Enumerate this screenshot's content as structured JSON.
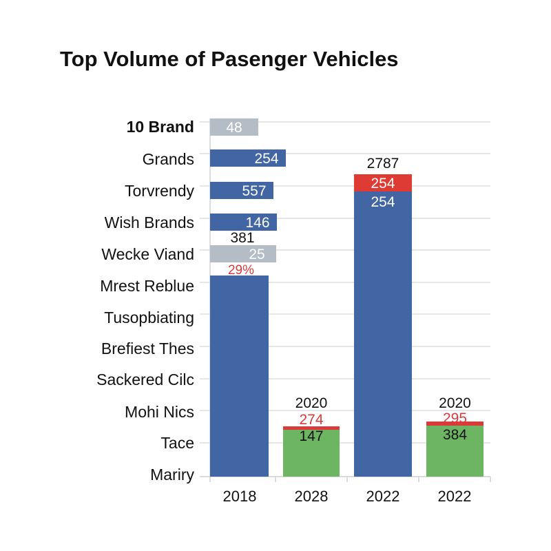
{
  "chart_data": {
    "type": "bar",
    "title": "Top Volume of Pasenger Vehicles",
    "row_labels": [
      "10 Brand",
      "Grands",
      "Torvrendy",
      "Wish Brands",
      "Wecke Viand",
      "Mrest Reblue",
      "Tusopbiating",
      "Brefiest Thes",
      "Sackered Cilc",
      "Mohi Nics",
      "Tace",
      "Mariry"
    ],
    "categories": [
      "2018",
      "2028",
      "2022",
      "2022"
    ],
    "horizontal_bars": [
      {
        "label": "48",
        "color": "#b4bcc6"
      },
      {
        "label": "254",
        "color": "#4265a3"
      },
      {
        "label": "557",
        "color": "#4265a3"
      },
      {
        "label": "146",
        "color": "#4265a3"
      },
      {
        "label": "25",
        "color": "#b4bcc6"
      }
    ],
    "annotations": [
      {
        "text": "381",
        "color": "#111111"
      },
      {
        "text": "29%",
        "color": "#d93a3a"
      }
    ],
    "columns": [
      {
        "category": "2018",
        "segments": [
          {
            "color": "#4265a3"
          }
        ]
      },
      {
        "category": "2028",
        "top_label": "2020",
        "segments": [
          {
            "label": "147",
            "color": "#6db562",
            "label_color": "#111111"
          },
          {
            "label": "274",
            "color": "#d93a3a",
            "label_color": "#d93a3a"
          }
        ]
      },
      {
        "category": "2022",
        "top_label": "2787",
        "segments": [
          {
            "label": "254",
            "color": "#4265a3",
            "label_color": "#ffffff"
          },
          {
            "label": "254",
            "color": "#df3b35",
            "label_color": "#ffffff"
          }
        ]
      },
      {
        "category": "2022",
        "top_label": "2020",
        "segments": [
          {
            "label": "384",
            "color": "#6db562",
            "label_color": "#111111"
          },
          {
            "label": "295",
            "color": "#d93a3a",
            "label_color": "#d93a3a"
          }
        ]
      }
    ],
    "grid": true
  }
}
